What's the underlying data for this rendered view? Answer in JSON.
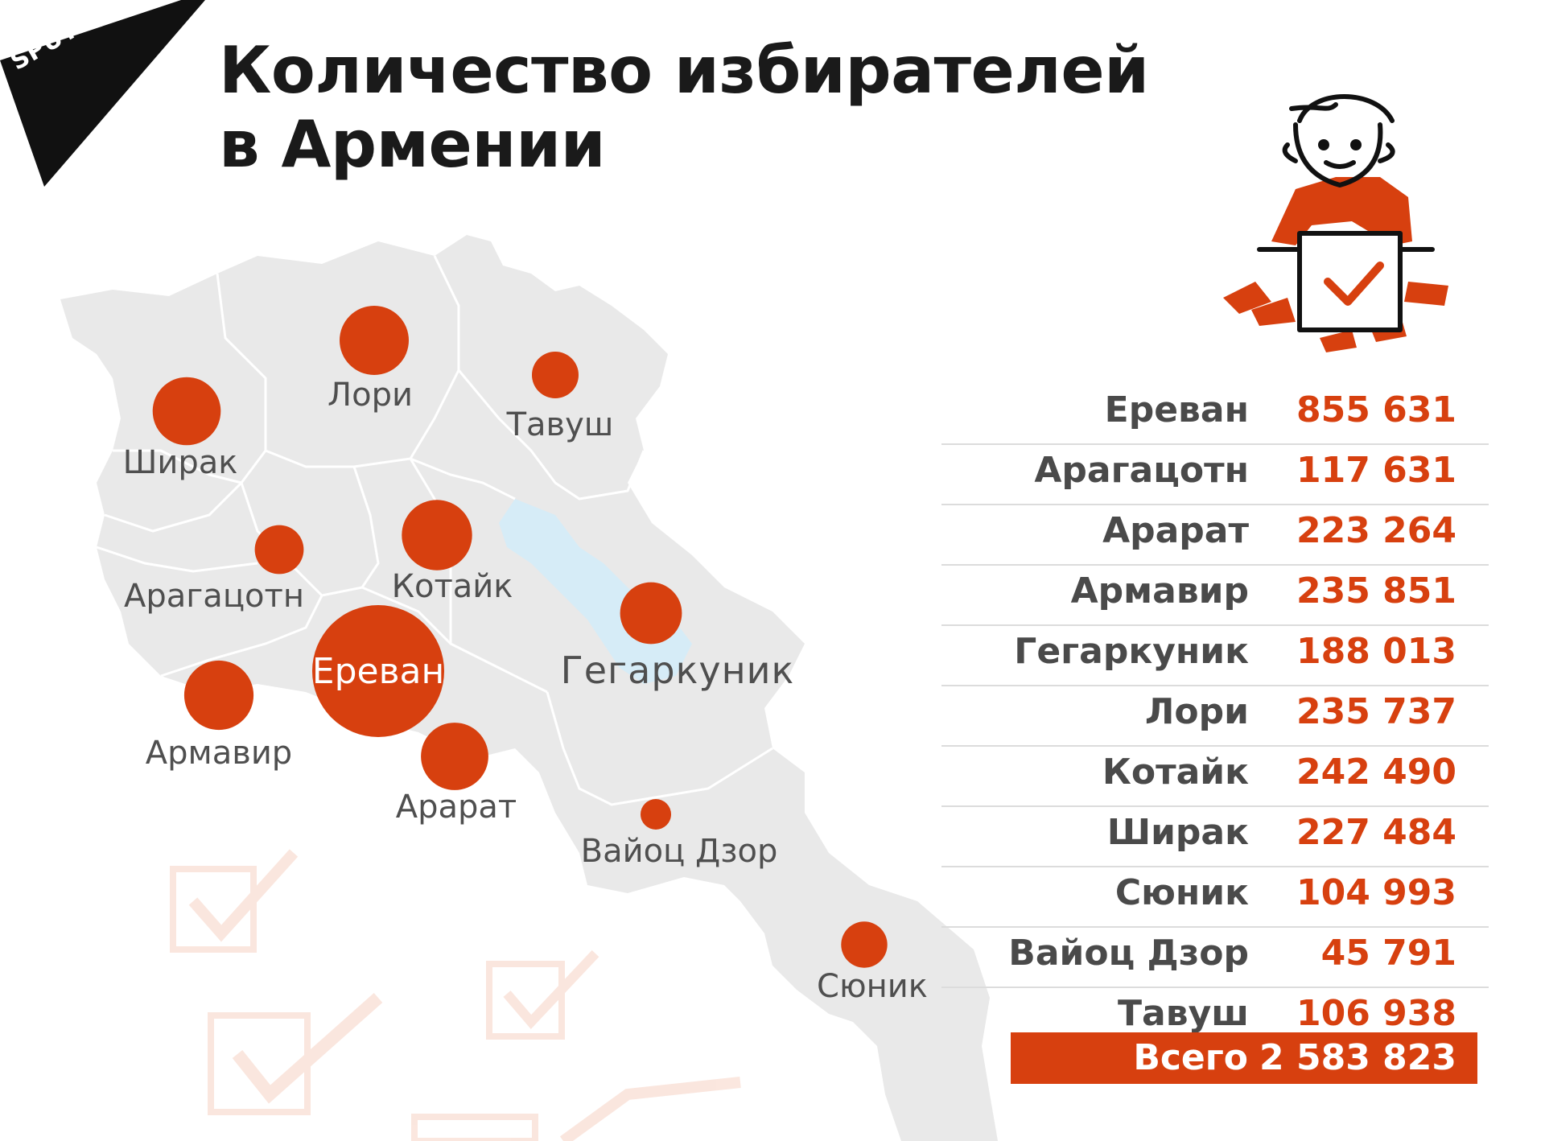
{
  "logo": {
    "text": "SPUTNIK"
  },
  "title": {
    "line1": "Количество избирателей",
    "line2": "в Армении"
  },
  "colors": {
    "accent": "#d7400f",
    "map_fill": "#e9e9e9",
    "map_border": "#ffffff",
    "lake": "#d6ecf7",
    "text": "#1a1a1a"
  },
  "map": {
    "regions": [
      {
        "name": "Ширак",
        "voters": 227484
      },
      {
        "name": "Лори",
        "voters": 235737
      },
      {
        "name": "Тавуш",
        "voters": 106938
      },
      {
        "name": "Арагацотн",
        "voters": 117631
      },
      {
        "name": "Котайк",
        "voters": 242490
      },
      {
        "name": "Ереван",
        "voters": 855631
      },
      {
        "name": "Гегаркуник",
        "voters": 188013
      },
      {
        "name": "Армавир",
        "voters": 235851
      },
      {
        "name": "Арарат",
        "voters": 223264
      },
      {
        "name": "Вайоц Дзор",
        "voters": 45791
      },
      {
        "name": "Сюник",
        "voters": 104993
      }
    ]
  },
  "table": {
    "rows": [
      {
        "name": "Ереван",
        "value": "855 631"
      },
      {
        "name": "Арагацотн",
        "value": "117 631"
      },
      {
        "name": "Арарат",
        "value": "223 264"
      },
      {
        "name": "Армавир",
        "value": "235 851"
      },
      {
        "name": "Гегаркуник",
        "value": "188 013"
      },
      {
        "name": "Лори",
        "value": "235 737"
      },
      {
        "name": "Котайк",
        "value": "242 490"
      },
      {
        "name": "Ширак",
        "value": "227 484"
      },
      {
        "name": "Сюник",
        "value": "104 993"
      },
      {
        "name": "Вайоц Дзор",
        "value": "45 791"
      },
      {
        "name": "Тавуш",
        "value": "106 938"
      }
    ],
    "total_label": "Всего",
    "total_value": "2 583 823"
  },
  "icons": {
    "illustration": "voter-ballot-box-icon",
    "watermark": "checkbox-icon"
  }
}
